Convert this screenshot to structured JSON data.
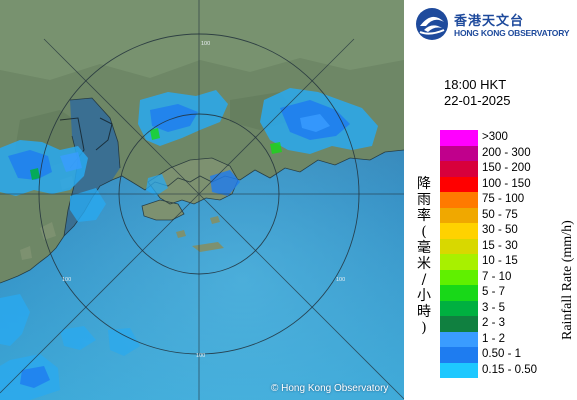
{
  "map": {
    "range_ring_label": "100",
    "copyright": "© Hong Kong Observatory",
    "colors": {
      "sea": "#2f7fb8",
      "land": "#6f8a6a",
      "ring": "#2a3a44"
    }
  },
  "logo": {
    "name_zh": "香港天文台",
    "name_en": "HONG KONG OBSERVATORY",
    "icon": "hko-logo-icon"
  },
  "timestamp": {
    "time": "18:00 HKT",
    "date": "22-01-2025"
  },
  "legend": {
    "unit_zh": "降雨率(毫米/小時)",
    "unit_en": "Rainfall Rate (mm/h)",
    "items": [
      {
        "label": ">300",
        "color": "#ff00ff"
      },
      {
        "label": "200 - 300",
        "color": "#c0008c"
      },
      {
        "label": "150 - 200",
        "color": "#d8003c"
      },
      {
        "label": "100 - 150",
        "color": "#ff0000"
      },
      {
        "label": "75 - 100",
        "color": "#ff7a00"
      },
      {
        "label": "50 - 75",
        "color": "#f0a800"
      },
      {
        "label": "30 - 50",
        "color": "#ffd200"
      },
      {
        "label": "15 - 30",
        "color": "#d8d800"
      },
      {
        "label": "10 - 15",
        "color": "#a8f000"
      },
      {
        "label": "7 - 10",
        "color": "#60f000"
      },
      {
        "label": "5 - 7",
        "color": "#18d818"
      },
      {
        "label": "3 - 5",
        "color": "#00b040"
      },
      {
        "label": "2 - 3",
        "color": "#108040"
      },
      {
        "label": "1 - 2",
        "color": "#3a9cff"
      },
      {
        "label": "0.50 - 1",
        "color": "#1e7cf0"
      },
      {
        "label": "0.15 - 0.50",
        "color": "#1ec8ff"
      }
    ]
  }
}
